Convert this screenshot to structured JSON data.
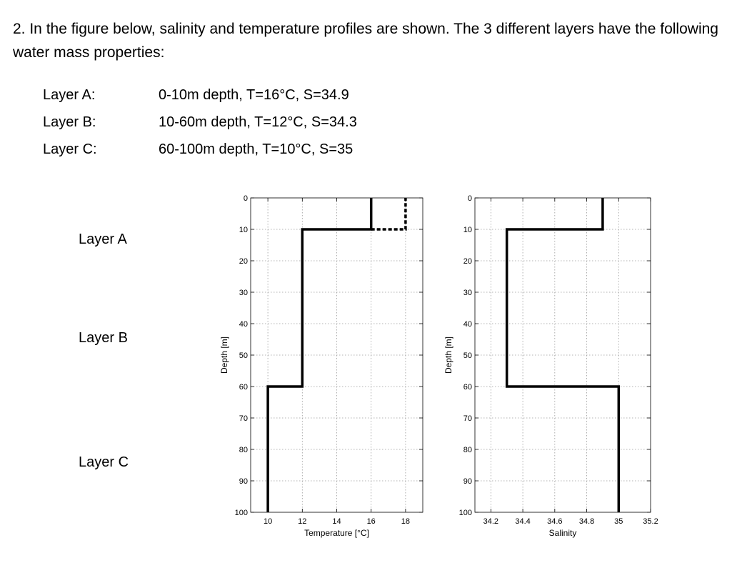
{
  "question": "2. In the figure below, salinity and temperature profiles are shown. The 3 different layers have the following water mass properties:",
  "layers": [
    {
      "name": "Layer A:",
      "desc": "0-10m depth, T=16°C, S=34.9"
    },
    {
      "name": "Layer B:",
      "desc": "10-60m depth, T=12°C, S=34.3"
    },
    {
      "name": "Layer C:",
      "desc": "60-100m depth, T=10°C, S=35"
    }
  ],
  "side_labels": [
    "Layer A",
    "Layer B",
    "Layer C"
  ],
  "chart_data": [
    {
      "type": "line",
      "xlabel": "Temperature [°C]",
      "ylabel": "Depth [m]",
      "xlim": [
        9,
        19
      ],
      "ylim": [
        0,
        100
      ],
      "y_inverted": true,
      "grid": true,
      "xticks": [
        10,
        12,
        14,
        16,
        18
      ],
      "yticks": [
        0,
        10,
        20,
        30,
        40,
        50,
        60,
        70,
        80,
        90,
        100
      ],
      "series": [
        {
          "style": "solid",
          "x": [
            16,
            16,
            12,
            12,
            10,
            10
          ],
          "y": [
            0,
            10,
            10,
            60,
            60,
            100
          ]
        },
        {
          "style": "dashed",
          "x": [
            16,
            18,
            18
          ],
          "y": [
            10,
            10,
            0
          ]
        }
      ]
    },
    {
      "type": "line",
      "xlabel": "Salinity",
      "ylabel": "Depth [m]",
      "xlim": [
        34.1,
        35.2
      ],
      "ylim": [
        0,
        100
      ],
      "y_inverted": true,
      "grid": true,
      "xticks": [
        34.2,
        34.4,
        34.6,
        34.8,
        35,
        35.2
      ],
      "yticks": [
        0,
        10,
        20,
        30,
        40,
        50,
        60,
        70,
        80,
        90,
        100
      ],
      "series": [
        {
          "style": "solid",
          "x": [
            34.9,
            34.9,
            34.3,
            34.3,
            35,
            35
          ],
          "y": [
            0,
            10,
            10,
            60,
            60,
            100
          ]
        }
      ]
    }
  ]
}
